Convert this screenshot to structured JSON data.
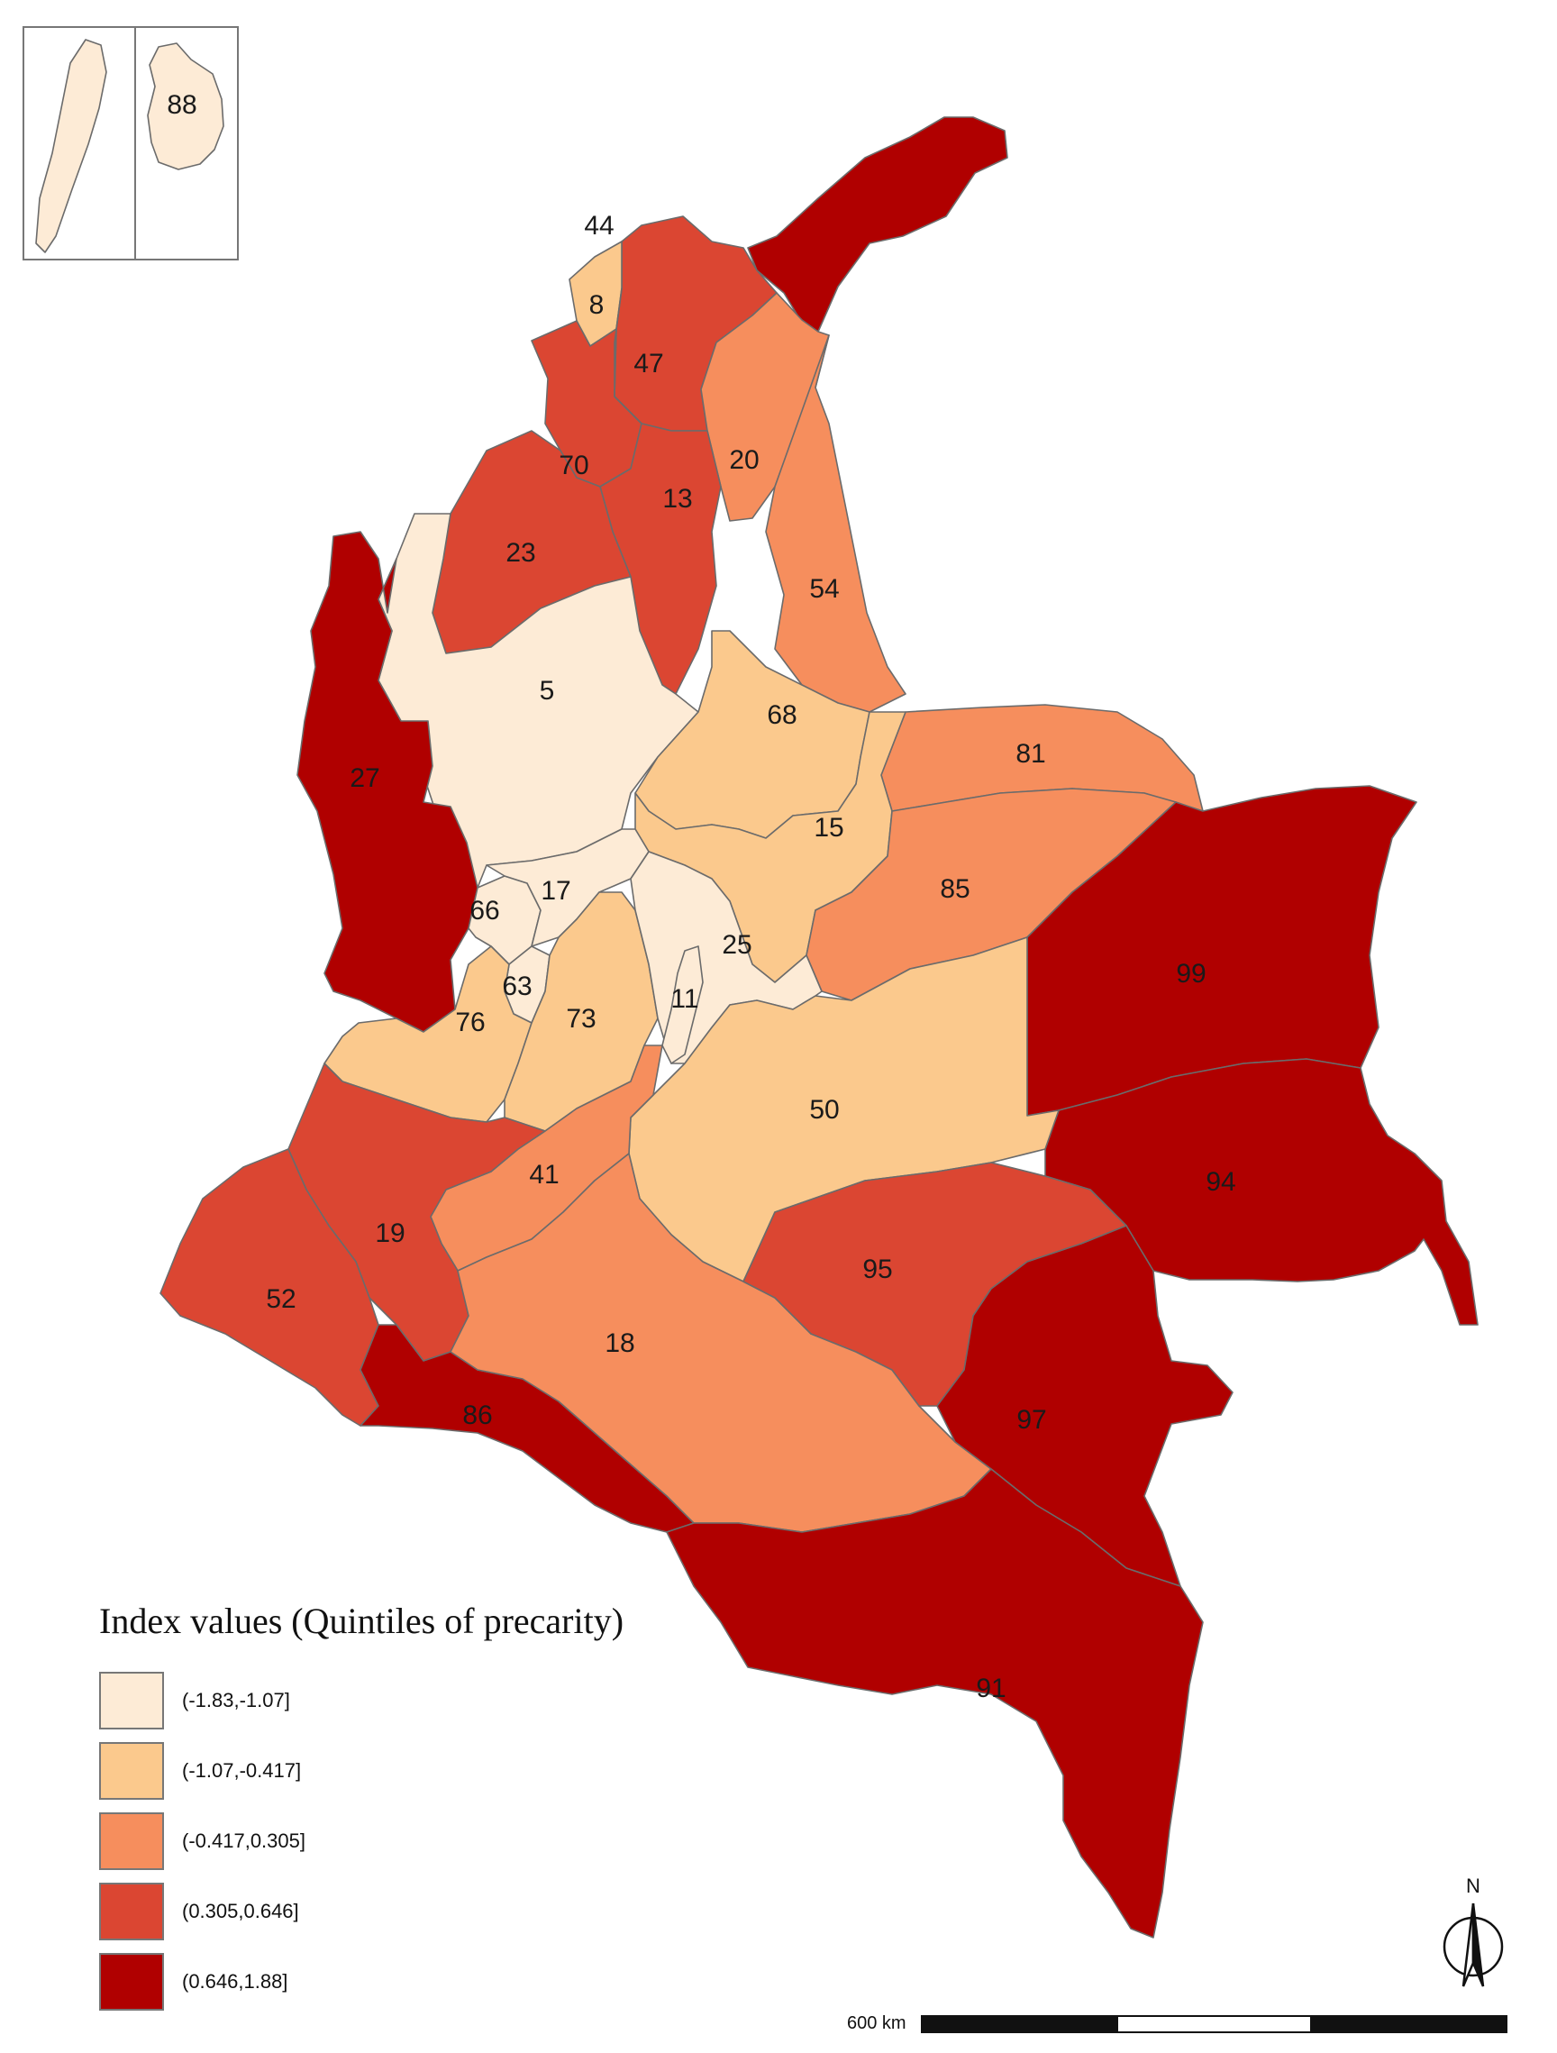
{
  "legend": {
    "title": "Index values (Quintiles of precarity)",
    "classes": [
      {
        "label": "(-1.83,-1.07]",
        "color": "#fdebd6"
      },
      {
        "label": "(-1.07,-0.417]",
        "color": "#fbc98d"
      },
      {
        "label": "(-0.417,0.305]",
        "color": "#f68e5d"
      },
      {
        "label": "(0.305,0.646]",
        "color": "#db4632"
      },
      {
        "label": "(0.646,1.88]",
        "color": "#b00000"
      }
    ]
  },
  "regions": [
    {
      "code": "5",
      "class": 0
    },
    {
      "code": "8",
      "class": 1
    },
    {
      "code": "11",
      "class": 0
    },
    {
      "code": "13",
      "class": 3
    },
    {
      "code": "15",
      "class": 1
    },
    {
      "code": "17",
      "class": 0
    },
    {
      "code": "18",
      "class": 2
    },
    {
      "code": "19",
      "class": 3
    },
    {
      "code": "20",
      "class": 2
    },
    {
      "code": "23",
      "class": 3
    },
    {
      "code": "25",
      "class": 0
    },
    {
      "code": "27",
      "class": 4
    },
    {
      "code": "41",
      "class": 2
    },
    {
      "code": "44",
      "class": 4
    },
    {
      "code": "47",
      "class": 3
    },
    {
      "code": "50",
      "class": 1
    },
    {
      "code": "52",
      "class": 3
    },
    {
      "code": "54",
      "class": 2
    },
    {
      "code": "63",
      "class": 0
    },
    {
      "code": "66",
      "class": 0
    },
    {
      "code": "68",
      "class": 1
    },
    {
      "code": "70",
      "class": 3
    },
    {
      "code": "73",
      "class": 1
    },
    {
      "code": "76",
      "class": 1
    },
    {
      "code": "81",
      "class": 2
    },
    {
      "code": "85",
      "class": 2
    },
    {
      "code": "86",
      "class": 4
    },
    {
      "code": "88",
      "class": 0
    },
    {
      "code": "91",
      "class": 4
    },
    {
      "code": "94",
      "class": 4
    },
    {
      "code": "95",
      "class": 3
    },
    {
      "code": "97",
      "class": 4
    },
    {
      "code": "99",
      "class": 4
    }
  ],
  "north_arrow": {
    "letter": "N",
    "icon": "north-arrow-icon"
  },
  "scale_bar": {
    "label": "600 km",
    "segment_colors": [
      "#111111",
      "#ffffff",
      "#111111"
    ]
  }
}
